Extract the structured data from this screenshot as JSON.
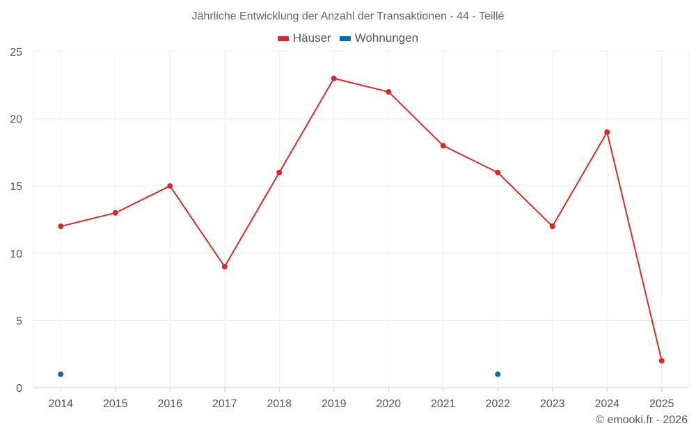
{
  "chart_data": {
    "type": "line",
    "title": "Jährliche Entwicklung der Anzahl der Transaktionen - 44 - Teillé",
    "categories": [
      "2014",
      "2015",
      "2016",
      "2017",
      "2018",
      "2019",
      "2020",
      "2021",
      "2022",
      "2023",
      "2024",
      "2025"
    ],
    "series": [
      {
        "name": "Häuser",
        "color": "#d32a2a",
        "values": [
          12,
          13,
          15,
          9,
          16,
          23,
          22,
          18,
          16,
          12,
          19,
          2
        ]
      },
      {
        "name": "Wohnungen",
        "color": "#0e6aa8",
        "values": [
          1,
          null,
          null,
          null,
          null,
          null,
          null,
          null,
          1,
          null,
          null,
          null
        ]
      }
    ],
    "ylim": [
      0,
      25
    ],
    "yticks": [
      0,
      5,
      10,
      15,
      20,
      25
    ],
    "xlabel": "",
    "ylabel": "",
    "grid": true,
    "legend": "top-center"
  },
  "credit": "© emooki.fr - 2026"
}
